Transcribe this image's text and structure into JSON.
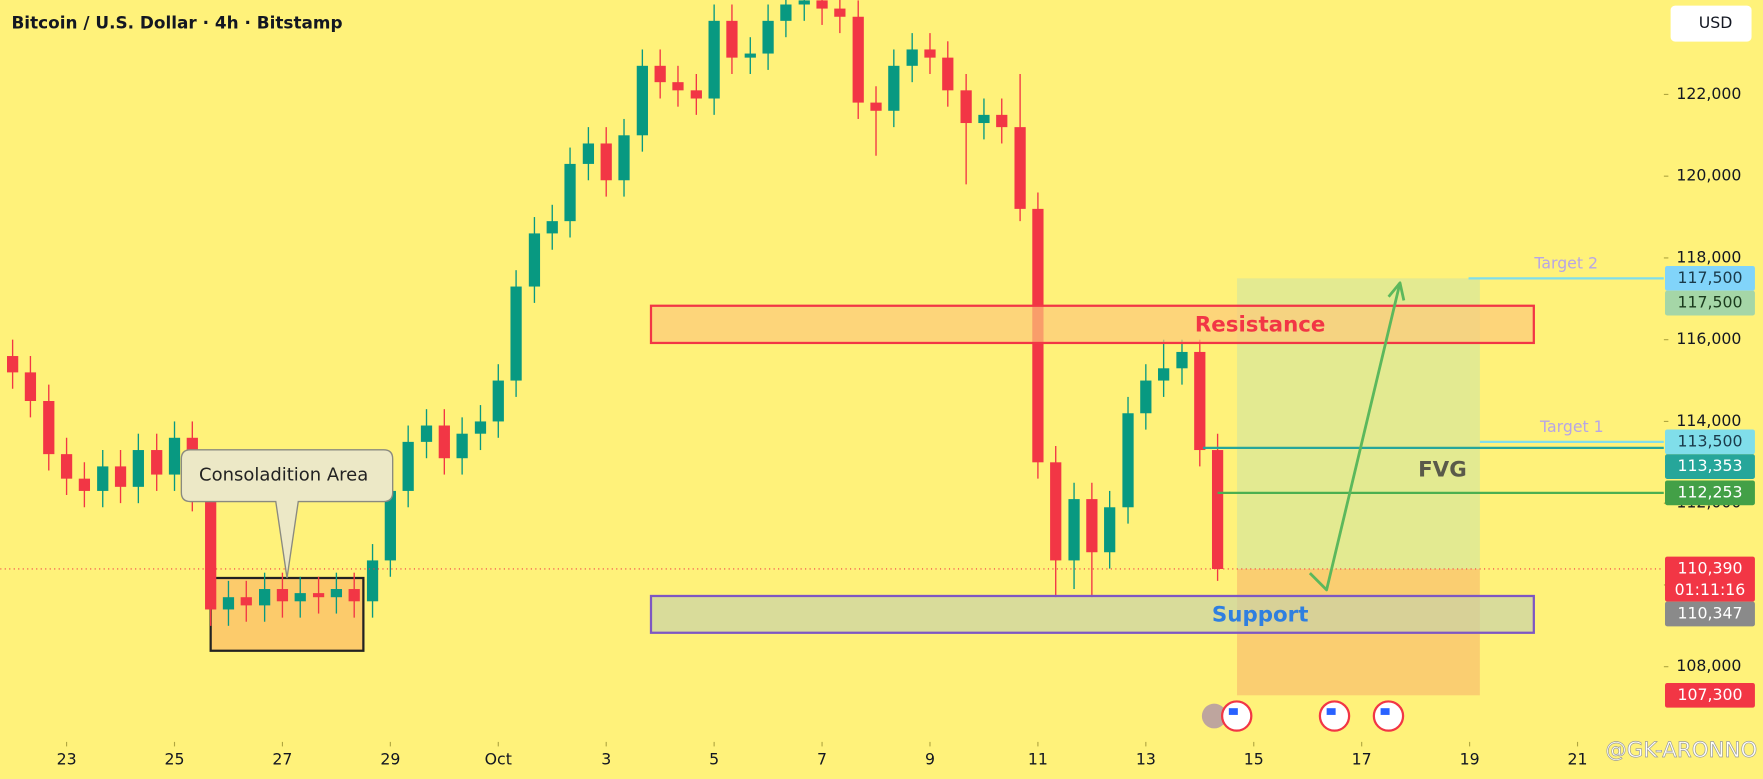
{
  "header": {
    "title": "Bitcoin / U.S. Dollar · 4h · Bitstamp",
    "currency": "USD",
    "watermark": "@GK-ARONNO"
  },
  "chart_data": {
    "type": "candlestick",
    "x": [
      0,
      0.33,
      0.67,
      1,
      1.33,
      1.67,
      2,
      2.33,
      2.67,
      3,
      3.33,
      3.67,
      4,
      4.33,
      4.67,
      5,
      5.33,
      5.67,
      6,
      6.33,
      6.67,
      7,
      7.33,
      7.67,
      8,
      8.33,
      8.67,
      9,
      9.33,
      9.67,
      10,
      10.33,
      10.67,
      11,
      11.33,
      11.67,
      12,
      12.33,
      12.67,
      13,
      13.33,
      13.67,
      14,
      14.33,
      14.67,
      15,
      15.33,
      15.67,
      16,
      16.33,
      16.67,
      17,
      17.33,
      17.67,
      18,
      18.33,
      18.67,
      19,
      19.33,
      19.67,
      20,
      20.33,
      20.67,
      21,
      21.33,
      21.67,
      22,
      22.33
    ],
    "open": [
      115600,
      115200,
      114500,
      113200,
      112600,
      112300,
      112900,
      112400,
      113300,
      112700,
      113600,
      112200,
      109400,
      109700,
      109500,
      109900,
      109600,
      109800,
      109700,
      109900,
      109600,
      110600,
      112300,
      113500,
      113900,
      113100,
      113700,
      114000,
      115000,
      117300,
      118600,
      118900,
      120300,
      120800,
      119900,
      121000,
      122700,
      122300,
      122100,
      121900,
      123800,
      122900,
      123000,
      123800,
      124200,
      124300,
      124100,
      123900,
      121800,
      121600,
      122700,
      123100,
      122900,
      122100,
      121300,
      121500,
      121200,
      119200,
      113000,
      110600,
      112100,
      110800,
      111900,
      114200,
      115000,
      115300,
      115700,
      113300
    ],
    "high": [
      116000,
      115600,
      114900,
      113600,
      113000,
      113300,
      113300,
      113700,
      113700,
      114000,
      114000,
      112600,
      110100,
      110100,
      110300,
      110300,
      110200,
      110200,
      110300,
      110300,
      111000,
      112700,
      113900,
      114300,
      114300,
      114100,
      114400,
      115400,
      117700,
      119000,
      119300,
      120700,
      121200,
      121200,
      121400,
      123100,
      123100,
      122700,
      122500,
      124200,
      124200,
      123400,
      124200,
      124600,
      124700,
      124700,
      124500,
      124300,
      122200,
      123100,
      123500,
      123500,
      123300,
      122500,
      121900,
      121900,
      122500,
      119600,
      113400,
      112500,
      112500,
      112300,
      114600,
      115400,
      116000,
      116000,
      116000,
      113700
    ],
    "low": [
      114800,
      114100,
      112800,
      112200,
      111900,
      111900,
      112000,
      112000,
      112300,
      112300,
      111800,
      109000,
      109000,
      109100,
      109100,
      109200,
      109200,
      109300,
      109300,
      109200,
      109200,
      110200,
      111900,
      113100,
      112700,
      112700,
      113300,
      113600,
      114600,
      116900,
      118200,
      118500,
      119900,
      119500,
      119500,
      120600,
      121900,
      121700,
      121500,
      121500,
      122500,
      122500,
      122600,
      123400,
      123800,
      123700,
      123500,
      121400,
      120500,
      121200,
      122300,
      122500,
      121700,
      119800,
      120900,
      120800,
      118900,
      112600,
      109700,
      109900,
      109700,
      110400,
      111500,
      113800,
      114600,
      114900,
      112900,
      110100
    ],
    "close": [
      115200,
      114500,
      113200,
      112600,
      112300,
      112900,
      112400,
      113300,
      112700,
      113600,
      112200,
      109400,
      109700,
      109500,
      109900,
      109600,
      109800,
      109700,
      109900,
      109600,
      110600,
      112300,
      113500,
      113900,
      113100,
      113700,
      114000,
      115000,
      117300,
      118600,
      118900,
      120300,
      120800,
      119900,
      121000,
      122700,
      122300,
      122100,
      121900,
      123800,
      122900,
      123000,
      123800,
      124200,
      124300,
      124100,
      123900,
      121800,
      121600,
      122700,
      123100,
      122900,
      122100,
      121300,
      121500,
      121200,
      119200,
      113000,
      110600,
      112100,
      110800,
      111900,
      114200,
      115000,
      115300,
      115700,
      113300,
      110390
    ],
    "up_color": "#089981",
    "down_color": "#f23645",
    "xlim": [
      -0.23,
      30.6
    ],
    "xticks": [
      {
        "value": 1,
        "label": "23"
      },
      {
        "value": 3,
        "label": "25"
      },
      {
        "value": 5,
        "label": "27"
      },
      {
        "value": 7,
        "label": "29"
      },
      {
        "value": 9,
        "label": "Oct"
      },
      {
        "value": 11,
        "label": "3"
      },
      {
        "value": 13,
        "label": "5"
      },
      {
        "value": 15,
        "label": "7"
      },
      {
        "value": 17,
        "label": "9"
      },
      {
        "value": 19,
        "label": "11"
      },
      {
        "value": 21,
        "label": "13"
      },
      {
        "value": 23,
        "label": "15"
      },
      {
        "value": 25,
        "label": "17"
      },
      {
        "value": 27,
        "label": "19"
      },
      {
        "value": 29,
        "label": "21"
      }
    ],
    "ylim": [
      106160,
      124310
    ],
    "yticks": [
      {
        "value": 108000,
        "label": "108,000"
      },
      {
        "value": 110000,
        "label": "110,000"
      },
      {
        "value": 112000,
        "label": "112,000"
      },
      {
        "value": 114000,
        "label": "114,000"
      },
      {
        "value": 116000,
        "label": "116,000"
      },
      {
        "value": 118000,
        "label": "118,000"
      },
      {
        "value": 120000,
        "label": "120,000"
      },
      {
        "value": 122000,
        "label": "122,000"
      }
    ],
    "grid": false,
    "last_price": {
      "value": 110390,
      "label": "110,390",
      "countdown": "01:11:16",
      "color": "#f23645"
    },
    "price_tags": [
      {
        "value": 117500,
        "label": "117,500",
        "color": "#81d4fa",
        "text_color": "#1a3a4a"
      },
      {
        "value": 117500,
        "label": "117,500",
        "color": "#a5d6a7",
        "text_color": "#1b3a1d"
      },
      {
        "value": 113500,
        "label": "113,500",
        "color": "#80deea",
        "text_color": "#1a3a4a"
      },
      {
        "value": 113353,
        "label": "113,353",
        "color": "#26a69a",
        "text_color": "#ffffff"
      },
      {
        "value": 112253,
        "label": "112,253",
        "color": "#43a047",
        "text_color": "#ffffff"
      },
      {
        "value": 110347,
        "label": "110,347",
        "color": "#8a8a8a",
        "text_color": "#ffffff"
      },
      {
        "value": 107300,
        "label": "107,300",
        "color": "#f23645",
        "text_color": "#ffffff"
      }
    ],
    "zones": [
      {
        "label": "Resistance",
        "x": [
          11.83,
          28.19
        ],
        "y": [
          115920,
          116830
        ],
        "fill": "#fcc97a",
        "stroke": "#f23645",
        "label_color": "#f23645"
      },
      {
        "label": "Support",
        "x": [
          11.83,
          28.19
        ],
        "y": [
          108830,
          109730
        ],
        "fill": "#c9d3a8",
        "stroke": "#7e57c2",
        "label_color": "#2f7fe0"
      }
    ],
    "consolidation": {
      "label": "Consoladition Area",
      "x": [
        3.67,
        6.5
      ],
      "y": [
        108390,
        110170
      ],
      "fill": "#fccb6b",
      "stroke": "#222222"
    },
    "target_zone": {
      "x": [
        22.69,
        27.19
      ],
      "entry": 110390,
      "target": 117500,
      "stop": 107300,
      "profit_color": "#d9e79a",
      "loss_color": "#f9c870"
    },
    "fvg": {
      "label": "FVG",
      "top": 113353,
      "bottom": 112253,
      "x": [
        22.06,
        22.33
      ],
      "top_color": "#26a69a",
      "bottom_color": "#4caf50"
    },
    "targets": [
      {
        "label": "Target 2",
        "value": 117500,
        "x": 26.98,
        "color": "#80deea",
        "label_color": "#b7a6e6"
      },
      {
        "label": "Target 1",
        "value": 113500,
        "x": 27.19,
        "color": "#80deea",
        "label_color": "#b7a6e6"
      }
    ],
    "arrow": {
      "x": [
        24.04,
        24.35,
        25.71
      ],
      "y": [
        110290,
        109880,
        117390
      ],
      "color": "#5cb85c"
    }
  }
}
